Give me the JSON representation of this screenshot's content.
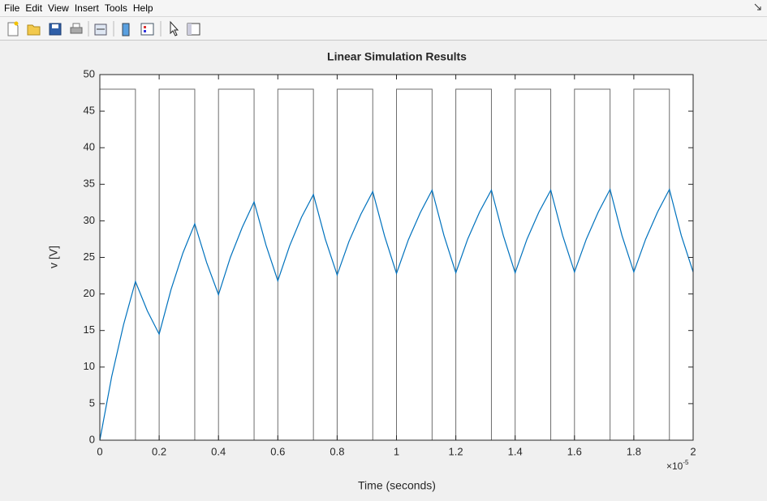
{
  "menu": [
    "File",
    "Edit",
    "View",
    "Insert",
    "Tools",
    "Help"
  ],
  "chart_data": {
    "type": "line",
    "title": "Linear Simulation Results",
    "xlabel": "Time (seconds)",
    "ylabel": "v [V]",
    "x_multiplier": {
      "base": "×10",
      "exponent": "-5"
    },
    "xlim": [
      0,
      2
    ],
    "ylim": [
      0,
      50
    ],
    "xticks": [
      0,
      0.2,
      0.4,
      0.6,
      0.8,
      1,
      1.2,
      1.4,
      1.6,
      1.8,
      2
    ],
    "yticks": [
      0,
      5,
      10,
      15,
      20,
      25,
      30,
      35,
      40,
      45,
      50
    ],
    "grid": false,
    "series": [
      {
        "color": "#6e6e6e",
        "x": [
          0,
          0,
          0.12,
          0.12,
          0.2,
          0.2,
          0.32,
          0.32,
          0.4,
          0.4,
          0.52,
          0.52,
          0.6,
          0.6,
          0.72,
          0.72,
          0.8,
          0.8,
          0.92,
          0.92,
          1,
          1,
          1.12,
          1.12,
          1.2,
          1.2,
          1.32,
          1.32,
          1.4,
          1.4,
          1.52,
          1.52,
          1.6,
          1.6,
          1.72,
          1.72,
          1.8,
          1.8,
          1.92,
          1.92,
          2
        ],
        "values": [
          0,
          48,
          48,
          0,
          0,
          48,
          48,
          0,
          0,
          48,
          48,
          0,
          0,
          48,
          48,
          0,
          0,
          48,
          48,
          0,
          0,
          48,
          48,
          0,
          0,
          48,
          48,
          0,
          0,
          48,
          48,
          0,
          0,
          48,
          48,
          0,
          0,
          48,
          48,
          0,
          0
        ]
      },
      {
        "color": "#0072bd",
        "x": [
          0,
          0.04,
          0.08,
          0.12,
          0.16,
          0.2,
          0.24,
          0.28,
          0.32,
          0.36,
          0.4,
          0.44,
          0.48,
          0.52,
          0.56,
          0.6,
          0.64,
          0.68,
          0.72,
          0.76,
          0.8,
          0.84,
          0.88,
          0.92,
          0.96,
          1,
          1.04,
          1.08,
          1.12,
          1.16,
          1.2,
          1.24,
          1.28,
          1.32,
          1.36,
          1.4,
          1.44,
          1.48,
          1.52,
          1.56,
          1.6,
          1.64,
          1.68,
          1.72,
          1.76,
          1.8,
          1.84,
          1.88,
          1.92,
          1.96,
          2
        ],
        "values": [
          0,
          8.7,
          15.8,
          21.7,
          17.7,
          14.5,
          20.6,
          25.6,
          29.6,
          24.3,
          19.9,
          25,
          29.1,
          32.6,
          26.7,
          21.8,
          26.6,
          30.5,
          33.6,
          27.5,
          22.6,
          27.2,
          30.9,
          34,
          27.9,
          22.8,
          27.4,
          31.1,
          34.2,
          28,
          22.9,
          27.5,
          31.2,
          34.2,
          28,
          22.9,
          27.5,
          31.2,
          34.2,
          28,
          23,
          27.5,
          31.2,
          34.3,
          28,
          23,
          27.5,
          31.2,
          34.3,
          28,
          23
        ]
      }
    ]
  }
}
